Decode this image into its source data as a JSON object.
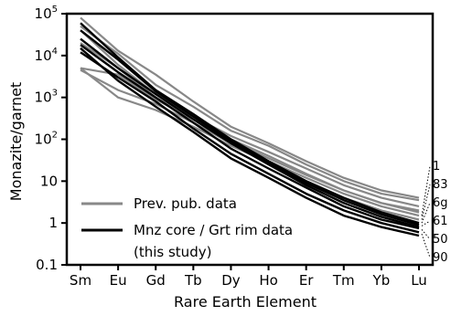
{
  "chart_data": {
    "type": "line",
    "title": "",
    "xlabel": "Rare Earth Element",
    "ylabel": "Monazite/garnet",
    "yscale": "log",
    "ylim": [
      0.1,
      100000
    ],
    "grid": false,
    "legend_position": "bottom-left",
    "categories": [
      "Sm",
      "Eu",
      "Gd",
      "Tb",
      "Dy",
      "Ho",
      "Er",
      "Tm",
      "Yb",
      "Lu"
    ],
    "yticks": [
      {
        "value": 100000,
        "base": "10",
        "exp": "5"
      },
      {
        "value": 10000,
        "base": "10",
        "exp": "4"
      },
      {
        "value": 1000,
        "base": "10",
        "exp": "3"
      },
      {
        "value": 100,
        "base": "10",
        "exp": "2"
      },
      {
        "value": 10,
        "base": "10",
        "exp": ""
      },
      {
        "value": 1,
        "base": "1",
        "exp": ""
      },
      {
        "value": 0.1,
        "base": "0.1",
        "exp": ""
      }
    ],
    "legend": [
      {
        "label": "Prev. pub. data",
        "color": "#888888"
      },
      {
        "label": "Mnz core / Grt rim data",
        "color": "#000000"
      },
      {
        "label": "(this study)",
        "color": ""
      }
    ],
    "end_labels": [
      "1",
      "83",
      "6g",
      "61",
      "50",
      "90"
    ],
    "series": [
      {
        "group": "previous",
        "color": "#888888",
        "values": [
          80000,
          13000,
          3500,
          800,
          200,
          80,
          30,
          12,
          6,
          4
        ]
      },
      {
        "group": "previous",
        "color": "#888888",
        "values": [
          50000,
          11000,
          2000,
          600,
          160,
          70,
          25,
          10,
          5,
          3.5
        ]
      },
      {
        "group": "previous",
        "color": "#888888",
        "values": [
          40000,
          6000,
          1200,
          350,
          120,
          50,
          20,
          8,
          4,
          2.5
        ]
      },
      {
        "group": "previous",
        "color": "#888888",
        "values": [
          20000,
          5000,
          1000,
          300,
          100,
          40,
          15,
          6,
          3,
          2
        ]
      },
      {
        "group": "previous",
        "color": "#888888",
        "values": [
          5000,
          3500,
          900,
          300,
          90,
          35,
          14,
          6,
          3,
          1.8
        ]
      },
      {
        "group": "previous",
        "color": "#888888",
        "values": [
          4500,
          1500,
          700,
          250,
          80,
          30,
          12,
          5,
          2.5,
          1.5
        ]
      },
      {
        "group": "previous",
        "color": "#888888",
        "values": [
          5000,
          1000,
          500,
          200,
          70,
          28,
          10,
          4,
          2,
          1.2
        ]
      },
      {
        "group": "this-study",
        "color": "#000000",
        "values": [
          60000,
          9000,
          1500,
          400,
          100,
          30,
          10,
          4,
          1.8,
          1.0
        ]
      },
      {
        "group": "this-study",
        "color": "#000000",
        "values": [
          40000,
          8000,
          1400,
          350,
          90,
          28,
          9,
          3.5,
          1.6,
          0.9
        ]
      },
      {
        "group": "this-study",
        "color": "#000000",
        "values": [
          25000,
          5000,
          1200,
          300,
          80,
          25,
          8,
          3,
          1.4,
          0.8
        ]
      },
      {
        "group": "this-study",
        "color": "#000000",
        "values": [
          18000,
          4000,
          1000,
          250,
          60,
          20,
          7,
          2.5,
          1.2,
          0.75
        ]
      },
      {
        "group": "this-study",
        "color": "#000000",
        "values": [
          12000,
          3000,
          800,
          180,
          45,
          15,
          5,
          2,
          1.0,
          0.6
        ]
      },
      {
        "group": "this-study",
        "color": "#000000",
        "values": [
          15000,
          2500,
          600,
          150,
          35,
          12,
          4,
          1.5,
          0.8,
          0.5
        ]
      }
    ]
  }
}
